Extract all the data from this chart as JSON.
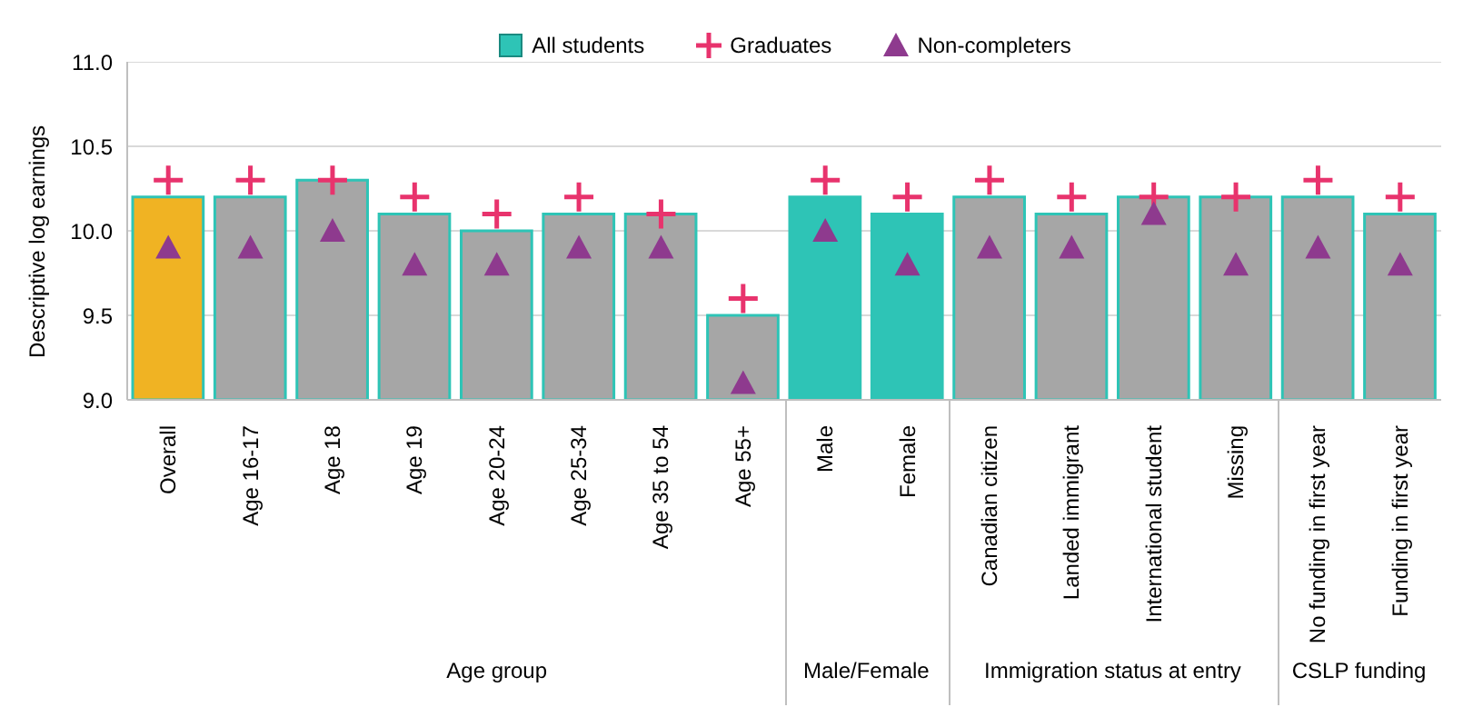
{
  "chart_data": {
    "type": "bar",
    "ylabel": "Descriptive log earnings",
    "categories": [
      "Overall",
      "Age 16-17",
      "Age 18",
      "Age 19",
      "Age 20-24",
      "Age 25-34",
      "Age 35 to 54",
      "Age 55+",
      "Male",
      "Female",
      "Canadian citizen",
      "Landed immigrant",
      "International student",
      "Missing",
      "No funding in first year",
      "Funding in first year"
    ],
    "series": [
      {
        "name": "All students",
        "color": "#2ec4b6",
        "colors": [
          "#f0b323",
          "#a6a6a6",
          "#a6a6a6",
          "#a6a6a6",
          "#a6a6a6",
          "#a6a6a6",
          "#a6a6a6",
          "#a6a6a6",
          "#2ec4b6",
          "#2ec4b6",
          "#a6a6a6",
          "#a6a6a6",
          "#a6a6a6",
          "#a6a6a6",
          "#a6a6a6",
          "#a6a6a6"
        ],
        "values": [
          10.2,
          10.2,
          10.3,
          10.1,
          10.0,
          10.1,
          10.1,
          9.5,
          10.2,
          10.1,
          10.2,
          10.1,
          10.2,
          10.2,
          10.2,
          10.1
        ]
      },
      {
        "name": "Graduates",
        "type": "scatter",
        "marker": "cross",
        "color": "#e8336d",
        "values": [
          10.3,
          10.3,
          10.3,
          10.2,
          10.1,
          10.2,
          10.1,
          9.6,
          10.3,
          10.2,
          10.3,
          10.2,
          10.2,
          10.2,
          10.3,
          10.2
        ]
      },
      {
        "name": "Non-completers",
        "type": "scatter",
        "marker": "triangle",
        "color": "#8e3a8e",
        "values": [
          9.9,
          9.9,
          10.0,
          9.8,
          9.8,
          9.9,
          9.9,
          9.1,
          10.0,
          9.8,
          9.9,
          9.9,
          10.1,
          9.8,
          9.9,
          9.8
        ]
      }
    ],
    "ylim": [
      9.0,
      11.0
    ],
    "yticks": [
      {
        "value": 9.0,
        "label": "9.0"
      },
      {
        "value": 9.5,
        "label": "9.5"
      },
      {
        "value": 10.0,
        "label": "10.0"
      },
      {
        "value": 10.5,
        "label": "10.5"
      },
      {
        "value": 11.0,
        "label": "11.0"
      }
    ],
    "grid": "y",
    "legend": "top",
    "annotations": [
      "Age group",
      "Male/Female",
      "Immigration status at entry",
      "CSLP funding"
    ]
  }
}
